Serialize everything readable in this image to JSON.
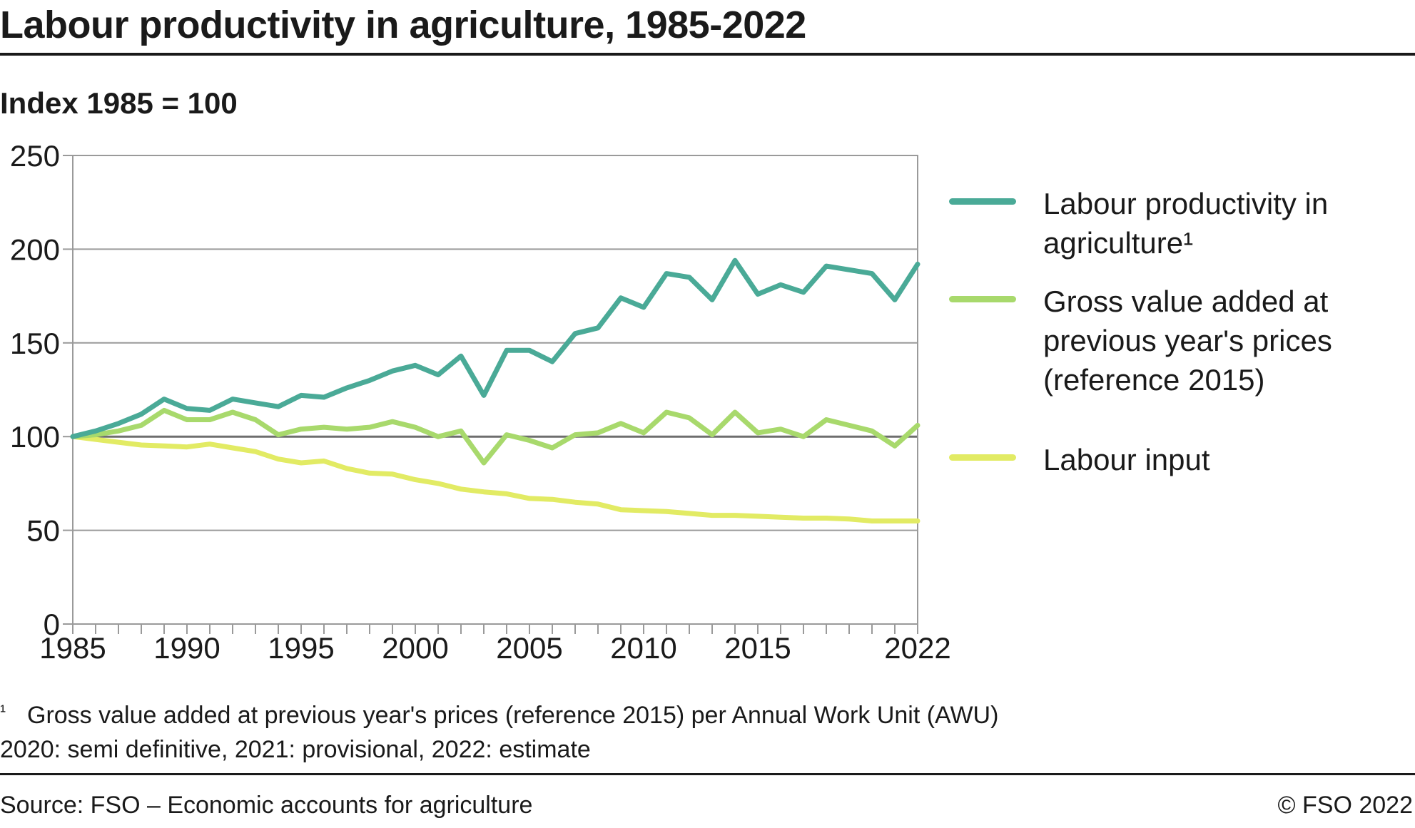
{
  "header": {
    "title": "Labour productivity in agriculture, 1985-2022",
    "subtitle": "Index 1985 = 100"
  },
  "chart_data": {
    "type": "line",
    "ylim": [
      0,
      250
    ],
    "yticks": [
      0,
      50,
      100,
      150,
      200,
      250
    ],
    "xlim": [
      1985,
      2022
    ],
    "xticks": [
      1985,
      1990,
      1995,
      2000,
      2005,
      2010,
      2015,
      2022
    ],
    "grid": true,
    "legend_position": "right",
    "x": [
      1985,
      1986,
      1987,
      1988,
      1989,
      1990,
      1991,
      1992,
      1993,
      1994,
      1995,
      1996,
      1997,
      1998,
      1999,
      2000,
      2001,
      2002,
      2003,
      2004,
      2005,
      2006,
      2007,
      2008,
      2009,
      2010,
      2011,
      2012,
      2013,
      2014,
      2015,
      2016,
      2017,
      2018,
      2019,
      2020,
      2021,
      2022
    ],
    "series": [
      {
        "name": "Labour productivity in agriculture¹",
        "color": "#4aaa97",
        "values": [
          100,
          103,
          107,
          112,
          120,
          115,
          114,
          120,
          118,
          116,
          122,
          121,
          126,
          130,
          135,
          138,
          133,
          143,
          122,
          146,
          146,
          140,
          155,
          158,
          174,
          169,
          187,
          185,
          173,
          194,
          176,
          181,
          177,
          191,
          189,
          187,
          173,
          192
        ]
      },
      {
        "name": "Gross value added at previous year's prices (reference 2015)",
        "color": "#a8d96c",
        "values": [
          100,
          101,
          103,
          106,
          114,
          109,
          109,
          113,
          109,
          101,
          104,
          105,
          104,
          105,
          108,
          105,
          100,
          103,
          86,
          101,
          98,
          94,
          101,
          102,
          107,
          102,
          113,
          110,
          101,
          113,
          102,
          104,
          100,
          109,
          106,
          103,
          95,
          106
        ]
      },
      {
        "name": "Labour input",
        "color": "#e2eb64",
        "values": [
          100,
          98.5,
          97,
          95.5,
          95,
          94.5,
          96,
          94,
          92,
          88,
          86,
          87,
          83,
          80.5,
          80,
          77,
          75,
          72,
          70.5,
          69.5,
          67,
          66.5,
          65,
          64,
          61,
          60.5,
          60,
          59,
          58,
          58,
          57.5,
          57,
          56.5,
          56.5,
          56,
          55,
          55,
          55
        ]
      }
    ]
  },
  "footnotes": {
    "mark": "¹",
    "note1": "Gross value added at previous year's prices (reference 2015) per Annual Work Unit (AWU)",
    "note2": "2020: semi definitive, 2021: provisional, 2022: estimate"
  },
  "source": "Source: FSO – Economic accounts for agriculture",
  "copyright": "© FSO 2022"
}
